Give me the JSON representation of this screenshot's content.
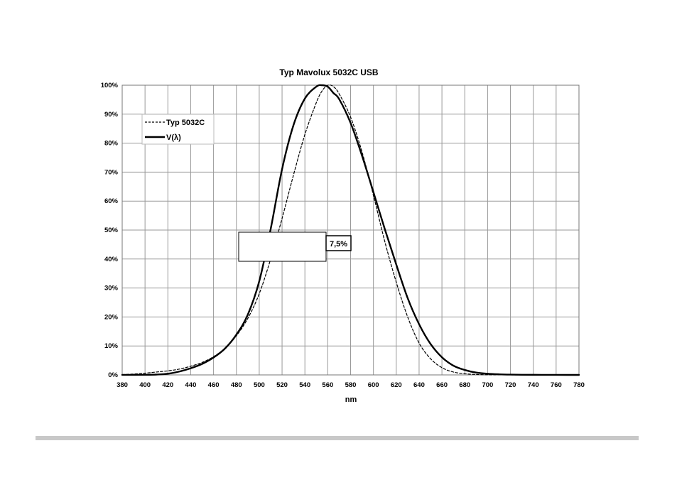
{
  "chart_data": {
    "type": "line",
    "title": "Typ Mavolux 5032C USB",
    "xlabel": "nm",
    "ylabel": "",
    "xlim": [
      380,
      780
    ],
    "ylim": [
      0,
      100
    ],
    "x_ticks": [
      380,
      400,
      420,
      440,
      460,
      480,
      500,
      520,
      540,
      560,
      580,
      600,
      620,
      640,
      660,
      680,
      700,
      720,
      740,
      760,
      780
    ],
    "y_ticks": [
      0,
      10,
      20,
      30,
      40,
      50,
      60,
      70,
      80,
      90,
      100
    ],
    "y_tick_suffix": "%",
    "grid": true,
    "legend_position": "top-left",
    "annotation": "7,5%",
    "x": [
      380,
      390,
      400,
      410,
      420,
      430,
      440,
      450,
      460,
      470,
      480,
      490,
      500,
      510,
      520,
      530,
      540,
      550,
      555,
      560,
      565,
      570,
      580,
      590,
      600,
      610,
      620,
      630,
      640,
      650,
      660,
      670,
      680,
      690,
      700,
      710,
      720,
      730,
      740,
      750,
      760,
      770,
      780
    ],
    "series": [
      {
        "name": "Typ 5032C",
        "style": "dashed",
        "color": "#000000",
        "values": [
          0.1,
          0.3,
          0.6,
          1.0,
          1.4,
          2.0,
          3.0,
          4.3,
          6.3,
          9.2,
          13.5,
          19.5,
          28,
          40,
          54,
          69,
          83,
          94,
          98,
          100,
          99.5,
          97,
          89,
          77,
          62,
          46,
          32,
          20,
          11,
          5.6,
          2.5,
          1.0,
          0.4,
          0.15,
          0.05,
          0.02,
          0.01,
          0,
          0,
          0,
          0,
          0,
          0
        ]
      },
      {
        "name": "V(λ)",
        "style": "solid",
        "color": "#000000",
        "values": [
          0.004,
          0.01,
          0.04,
          0.12,
          0.4,
          1.16,
          2.3,
          3.8,
          6.0,
          9.1,
          13.9,
          20.8,
          32.3,
          50.3,
          71.0,
          86.2,
          95.4,
          99.5,
          100.0,
          99.5,
          97.3,
          95.2,
          87.0,
          75.7,
          63.1,
          50.3,
          38.1,
          26.5,
          17.5,
          10.7,
          6.1,
          3.2,
          1.7,
          0.8,
          0.41,
          0.21,
          0.1,
          0.05,
          0.03,
          0.01,
          0.006,
          0.003,
          0.001
        ]
      }
    ]
  }
}
